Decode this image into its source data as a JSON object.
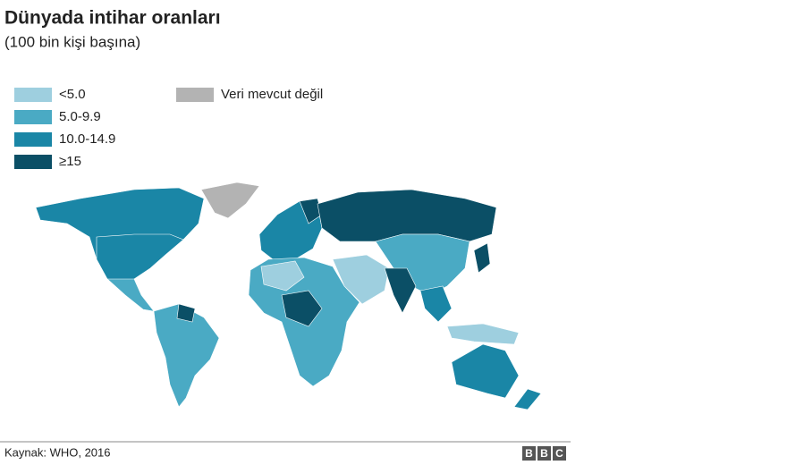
{
  "header": {
    "title": "Dünyada intihar oranları",
    "subtitle": "(100 bin kişi başına)"
  },
  "legend": [
    {
      "label": "<5.0",
      "color": "#9ecfdf"
    },
    {
      "label": "5.0-9.9",
      "color": "#4aaac4"
    },
    {
      "label": "10.0-14.9",
      "color": "#1a86a6"
    },
    {
      "label": "≥15",
      "color": "#0b4f66"
    },
    {
      "label": "Veri mevcut değil",
      "color": "#b3b3b3"
    }
  ],
  "footer": {
    "source": "Kaynak: WHO, 2016",
    "logo": [
      "B",
      "B",
      "C"
    ]
  }
}
